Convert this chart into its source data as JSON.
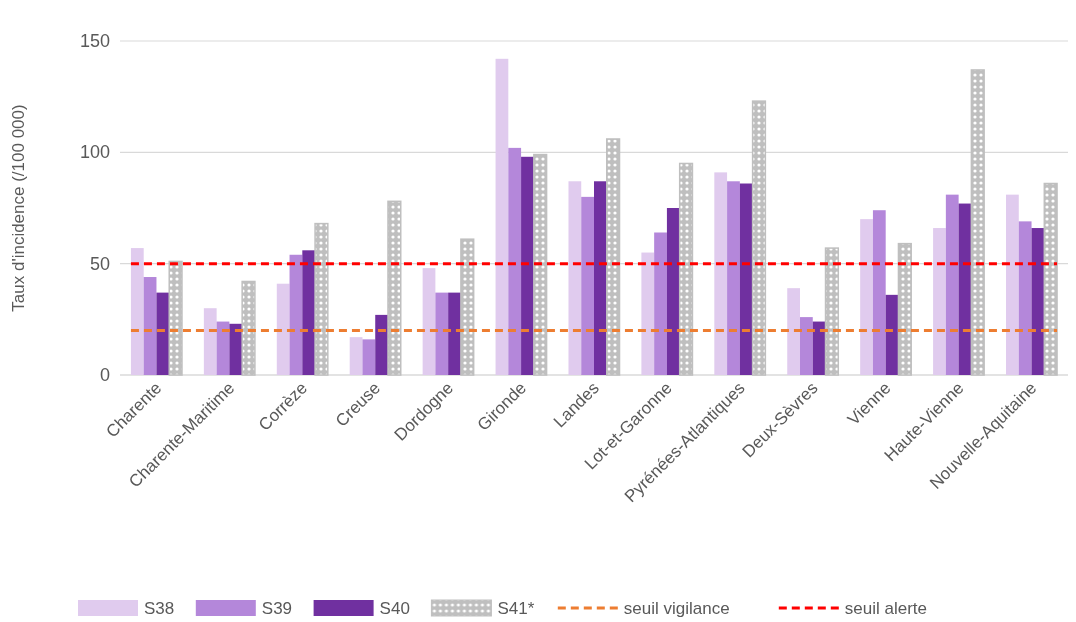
{
  "chart_data": {
    "type": "bar",
    "ylabel": "Taux d'incidence (/100 000)",
    "categories": [
      "Charente",
      "Charente-Maritime",
      "Corrèze",
      "Creuse",
      "Dordogne",
      "Gironde",
      "Landes",
      "Lot-et-Garonne",
      "Pyrénées-Atlantiques",
      "Deux-Sèvres",
      "Vienne",
      "Haute-Vienne",
      "Nouvelle-Aquitaine"
    ],
    "series": [
      {
        "name": "S38",
        "color": "#e0cbee",
        "values": [
          57,
          30,
          41,
          17,
          48,
          142,
          87,
          55,
          91,
          39,
          70,
          66,
          81
        ]
      },
      {
        "name": "S39",
        "color": "#b487da",
        "values": [
          44,
          24,
          54,
          16,
          37,
          102,
          80,
          64,
          87,
          26,
          74,
          81,
          69
        ]
      },
      {
        "name": "S40",
        "color": "#7030a0",
        "values": [
          37,
          23,
          56,
          27,
          37,
          98,
          87,
          75,
          86,
          24,
          36,
          77,
          66
        ]
      },
      {
        "name": "S41*",
        "color": "#bfbfbf",
        "values": [
          51,
          42,
          68,
          78,
          61,
          99,
          106,
          95,
          123,
          57,
          59,
          137,
          86
        ]
      }
    ],
    "ref_lines": [
      {
        "axis": "y",
        "value": 20,
        "label": "seuil vigilance",
        "color": "#ed7d31",
        "line_style": "dashed"
      },
      {
        "axis": "y",
        "value": 50,
        "label": "seuil alerte",
        "color": "#ff0000",
        "line_style": "dashed"
      }
    ],
    "ylim": [
      0,
      150
    ],
    "yticks": [
      0,
      50,
      100,
      150
    ],
    "grid": "y",
    "legend": "bottom"
  }
}
